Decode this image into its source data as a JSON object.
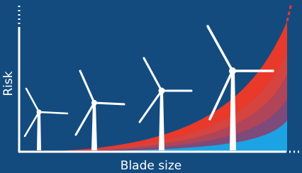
{
  "y_axis_label": "Risk",
  "x_axis_label": "Blade size"
}
